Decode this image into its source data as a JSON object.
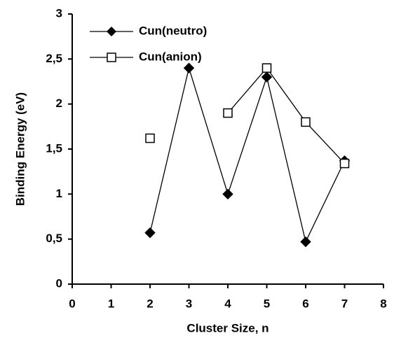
{
  "chart_data": {
    "type": "line",
    "xlabel": "Cluster Size, n",
    "ylabel": "Binding Energy (eV)",
    "x": [
      2,
      3,
      4,
      5,
      6,
      7
    ],
    "series": [
      {
        "name": "Cun(neutro)",
        "color": "#000000",
        "marker": "diamond",
        "values": [
          0.57,
          2.4,
          1.0,
          2.3,
          0.47,
          1.37
        ]
      },
      {
        "name": "Cun(anion)",
        "color": "#000000",
        "marker": "open-square",
        "values": [
          1.62,
          null,
          1.9,
          2.4,
          1.8,
          1.34
        ]
      }
    ],
    "xlim": [
      0,
      8
    ],
    "xticks": [
      0,
      1,
      2,
      3,
      4,
      5,
      6,
      7,
      8
    ],
    "ylim": [
      0,
      3
    ],
    "yticks": [
      0,
      {
        "value": 0.5,
        "label": "0,5"
      },
      1,
      {
        "value": 1.5,
        "label": "1,5"
      },
      2,
      {
        "value": 2.5,
        "label": "2,5"
      },
      3
    ],
    "legend": "upper-left",
    "grid": false
  }
}
